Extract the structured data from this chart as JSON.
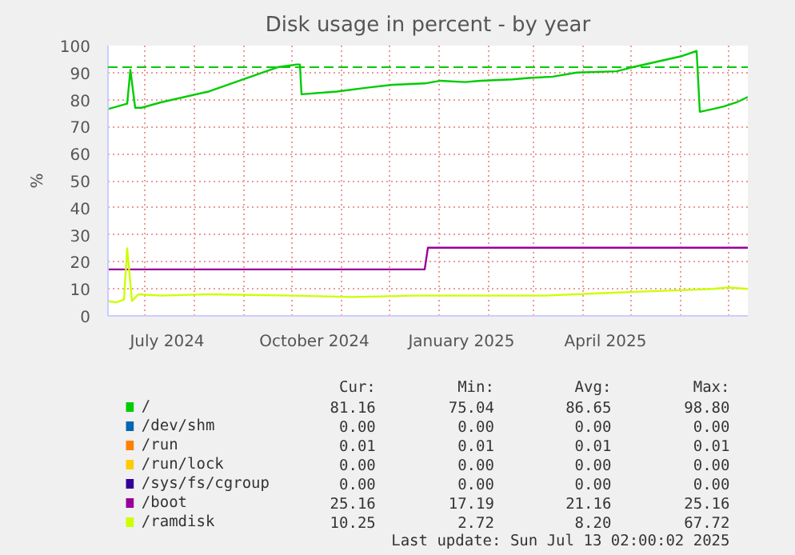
{
  "chart_data": {
    "type": "line",
    "title": "Disk usage in percent - by year",
    "ylabel": "%",
    "ylim": [
      0,
      100
    ],
    "yticks": [
      0,
      10,
      20,
      30,
      40,
      50,
      60,
      70,
      80,
      90,
      100
    ],
    "xlim": [
      "2024-06-08",
      "2025-07-13"
    ],
    "xticks": [
      {
        "value": "2024-07-01",
        "label": null
      },
      {
        "value": "2024-07-15",
        "label": "July 2024"
      },
      {
        "value": "2024-08-01",
        "label": null
      },
      {
        "value": "2024-09-01",
        "label": null
      },
      {
        "value": "2024-10-01",
        "label": null
      },
      {
        "value": "2024-10-15",
        "label": "October 2024"
      },
      {
        "value": "2024-11-01",
        "label": null
      },
      {
        "value": "2024-12-01",
        "label": null
      },
      {
        "value": "2025-01-01",
        "label": null
      },
      {
        "value": "2025-01-15",
        "label": "January 2025"
      },
      {
        "value": "2025-02-01",
        "label": null
      },
      {
        "value": "2025-03-01",
        "label": null
      },
      {
        "value": "2025-04-01",
        "label": null
      },
      {
        "value": "2025-04-15",
        "label": "April 2025"
      },
      {
        "value": "2025-05-01",
        "label": null
      },
      {
        "value": "2025-06-01",
        "label": null
      },
      {
        "value": "2025-07-01",
        "label": null
      }
    ],
    "grid": true,
    "legend": "bottom",
    "ref_lines": [
      {
        "axis": "y",
        "value": 92,
        "color": "#00cc00",
        "line_style": "dashed"
      }
    ],
    "series": [
      {
        "name": "/",
        "color": "#00cc00",
        "x": [
          "2024-06-08",
          "2024-06-20",
          "2024-06-22",
          "2024-06-25",
          "2024-06-29",
          "2024-07-11",
          "2024-08-10",
          "2024-09-22",
          "2024-10-04",
          "2024-10-06",
          "2024-10-07",
          "2024-10-29",
          "2024-11-18",
          "2024-12-03",
          "2024-12-23",
          "2025-01-02",
          "2025-01-17",
          "2025-01-27",
          "2025-02-16",
          "2025-02-26",
          "2025-03-13",
          "2025-03-28",
          "2025-04-22",
          "2025-05-02",
          "2025-05-17",
          "2025-06-01",
          "2025-06-11",
          "2025-06-13",
          "2025-06-21",
          "2025-06-28",
          "2025-07-06",
          "2025-07-13"
        ],
        "values": [
          76.5,
          78.5,
          91,
          77,
          77,
          79,
          83,
          92,
          93,
          93,
          82,
          83,
          84.5,
          85.5,
          86,
          87,
          86.5,
          87,
          87.5,
          88,
          88.5,
          90,
          90.5,
          92,
          94,
          96,
          98,
          75.5,
          76.5,
          77.5,
          79,
          81
        ]
      },
      {
        "name": "/dev/shm",
        "color": "#0066b3"
      },
      {
        "name": "/run",
        "color": "#ff8000"
      },
      {
        "name": "/run/lock",
        "color": "#ffcc00"
      },
      {
        "name": "/sys/fs/cgroup",
        "color": "#330099"
      },
      {
        "name": "/boot",
        "color": "#990099",
        "x": [
          "2024-06-08",
          "2024-12-23",
          "2024-12-25",
          "2025-07-13"
        ],
        "values": [
          17.2,
          17.2,
          25.2,
          25.2
        ]
      },
      {
        "name": "/ramdisk",
        "color": "#ccff00",
        "x": [
          "2024-06-08",
          "2024-06-13",
          "2024-06-18",
          "2024-06-20",
          "2024-06-23",
          "2024-06-27",
          "2024-07-11",
          "2024-08-10",
          "2024-10-01",
          "2024-11-08",
          "2024-12-18",
          "2025-03-08",
          "2025-04-17",
          "2025-05-07",
          "2025-06-01",
          "2025-06-21",
          "2025-07-01",
          "2025-07-13"
        ],
        "values": [
          5.5,
          5,
          6,
          25,
          5.5,
          8,
          7.5,
          8,
          7.5,
          7,
          7.5,
          7.5,
          8.5,
          9,
          9.5,
          10,
          10.5,
          10
        ]
      }
    ],
    "annotations": [
      "Cur:",
      "Min:",
      "Avg:",
      "Max:",
      "81.16",
      "75.04",
      "86.65",
      "98.80",
      "0.00",
      "0.00",
      "0.00",
      "0.00",
      "0.01",
      "0.01",
      "0.01",
      "0.01",
      "0.00",
      "0.00",
      "0.00",
      "0.00",
      "0.00",
      "0.00",
      "0.00",
      "0.00",
      "25.16",
      "17.19",
      "21.16",
      "25.16",
      "10.25",
      "2.72",
      "8.20",
      "67.72",
      "Last update: Sun Jul 13 02:00:02 2025"
    ]
  }
}
